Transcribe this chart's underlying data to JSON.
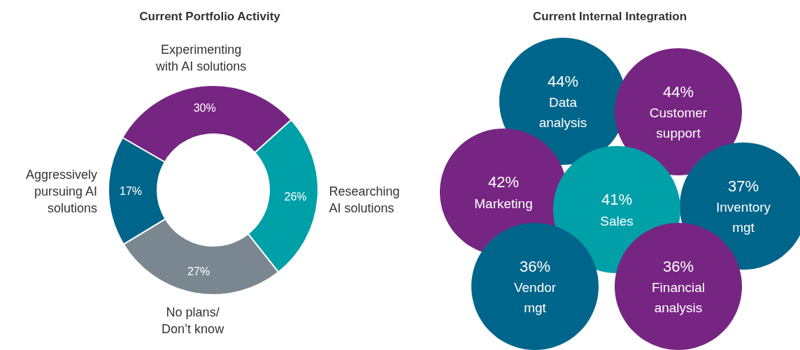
{
  "chart_data": [
    {
      "type": "donut",
      "title": "Current Portfolio Activity",
      "categories": [
        "Experimenting\nwith AI solutions",
        "Researching\nAI solutions",
        "No plans/\nDon’t know",
        "Aggressively\npursuing AI\nsolutions"
      ],
      "values": [
        30,
        26,
        27,
        17
      ],
      "colors": [
        "#772583",
        "#00a0a8",
        "#7a8791",
        "#00658a"
      ],
      "value_labels": [
        "30%",
        "26%",
        "27%",
        "17%"
      ],
      "legend": false
    },
    {
      "type": "other",
      "title": "Current Internal Integration",
      "categories": [
        "Data\nanalysis",
        "Customer\nsupport",
        "Marketing",
        "Inventory\nmgt",
        "Sales",
        "Vendor\nmgt",
        "Financial\nanalysis"
      ],
      "values": [
        44,
        44,
        42,
        37,
        41,
        36,
        36
      ],
      "colors": [
        "#00658a",
        "#772583",
        "#772583",
        "#00658a",
        "#00a0a8",
        "#00658a",
        "#772583"
      ],
      "value_labels": [
        "44%",
        "44%",
        "42%",
        "37%",
        "41%",
        "36%",
        "36%"
      ]
    }
  ]
}
